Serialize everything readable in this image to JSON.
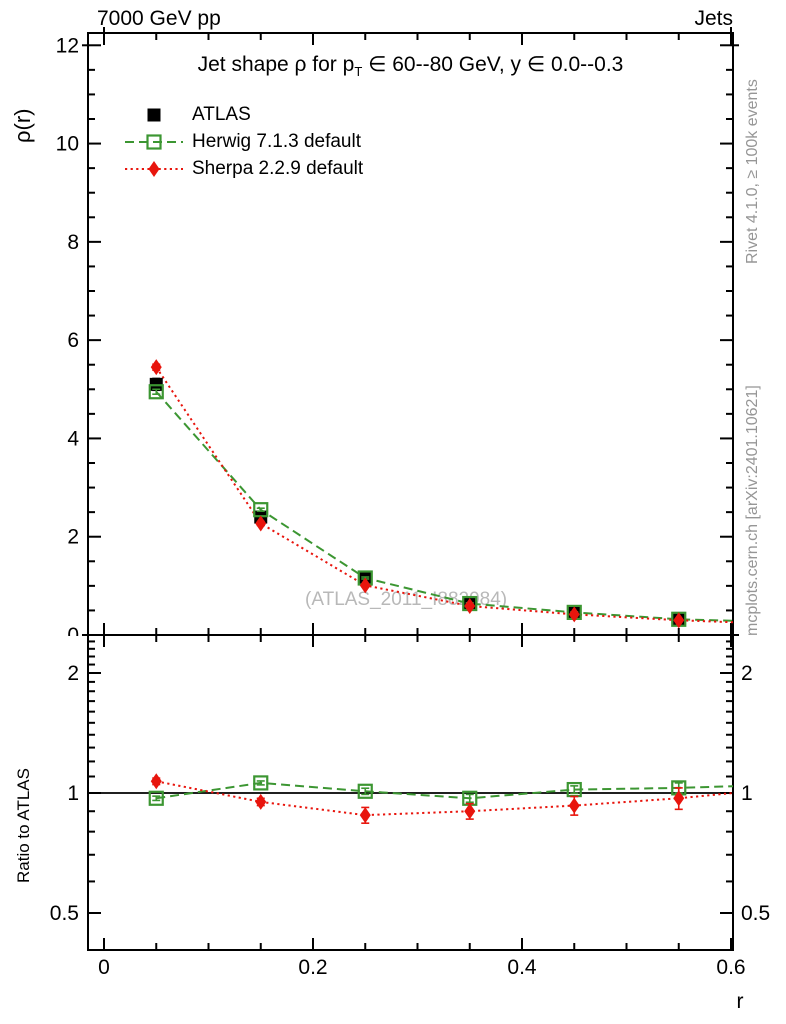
{
  "header": {
    "left": "7000 GeV pp",
    "right": "Jets"
  },
  "main_panel": {
    "ylabel": "ρ(r)",
    "title": {
      "pre": "Jet shape ρ for p",
      "sub": "T",
      "post": " ∈ 60--80 GeV, y ∈ 0.0--0.3"
    },
    "watermark": "(ATLAS_2011_I882984)"
  },
  "ratio_panel": {
    "ylabel": "Ratio to ATLAS",
    "reference_line": 1
  },
  "side_notes": {
    "top": "Rivet 4.1.0, ≥ 100k events",
    "bottom": "mcplots.cern.ch [arXiv:2401.10621]"
  },
  "legend": {
    "items": [
      {
        "label": "ATLAS"
      },
      {
        "label": "Herwig 7.1.3 default"
      },
      {
        "label": "Sherpa 2.2.9 default"
      }
    ]
  },
  "colors": {
    "atlas": "#000000",
    "herwig": "#3c9632",
    "sherpa": "#e8150d",
    "frame": "#000000",
    "gray_text": "#969696",
    "watermark": "#b8b8b8"
  },
  "chart_data": [
    {
      "type": "scatter",
      "panel": "main",
      "title": "Jet shape ρ for pT ∈ 60--80 GeV, y ∈ 0.0--0.3",
      "xlabel": "r",
      "ylabel": "ρ(r)",
      "xlim": [
        -0.015,
        0.602
      ],
      "ylim": [
        0,
        12.25
      ],
      "yscale": "linear",
      "grid": false,
      "xticks": [
        0,
        0.2,
        0.4,
        0.6
      ],
      "xtick_labels": [
        "0",
        "0.2",
        "0.4",
        "0.6"
      ],
      "x_minor_step": 0.05,
      "yticks": [
        0,
        2,
        4,
        6,
        8,
        10,
        12
      ],
      "ytick_labels": [
        "0",
        "2",
        "4",
        "6",
        "8",
        "10",
        "12"
      ],
      "y_minor_step": 0.5,
      "x": [
        0.05,
        0.15,
        0.25,
        0.35,
        0.45,
        0.55
      ],
      "series": [
        {
          "name": "ATLAS",
          "color": "#000000",
          "marker": "filled-square",
          "line": "none",
          "values": [
            5.1,
            2.4,
            1.15,
            0.66,
            0.45,
            0.31
          ],
          "yerr": [
            0.12,
            0.07,
            0.04,
            0.03,
            0.02,
            0.02
          ]
        },
        {
          "name": "Herwig 7.1.3 default",
          "color": "#3c9632",
          "marker": "open-square",
          "line": "dashed",
          "values": [
            4.95,
            2.55,
            1.16,
            0.64,
            0.46,
            0.32
          ],
          "yerr": [
            0.05,
            0.03,
            0.02,
            0.015,
            0.012,
            0.012
          ],
          "line_end_value": 0.29
        },
        {
          "name": "Sherpa 2.2.9 default",
          "color": "#e8150d",
          "marker": "filled-diamond",
          "line": "dotted",
          "values": [
            5.45,
            2.27,
            1.01,
            0.59,
            0.42,
            0.3
          ],
          "yerr": [
            0.06,
            0.04,
            0.025,
            0.02,
            0.02,
            0.02
          ],
          "line_end_value": 0.26
        }
      ]
    },
    {
      "type": "scatter",
      "panel": "ratio",
      "ylabel": "Ratio to ATLAS",
      "yscale": "log",
      "ylim": [
        0.404,
        2.49
      ],
      "grid": false,
      "reference_line": 1,
      "yticks": [
        0.5,
        1,
        2
      ],
      "ytick_labels": [
        "0.5",
        "1",
        "2"
      ],
      "y_minor_ticks": [
        0.6,
        0.7,
        0.8,
        0.9,
        1.1,
        1.2,
        1.3,
        1.4,
        1.5,
        1.6,
        1.7,
        1.8,
        1.9,
        2.1,
        2.2,
        2.3,
        2.4
      ],
      "x": [
        0.05,
        0.15,
        0.25,
        0.35,
        0.45,
        0.55
      ],
      "series": [
        {
          "name": "Herwig 7.1.3 default",
          "color": "#3c9632",
          "marker": "open-square",
          "line": "dashed",
          "values": [
            0.97,
            1.06,
            1.01,
            0.97,
            1.02,
            1.03
          ],
          "yerr": [
            0.012,
            0.012,
            0.018,
            0.022,
            0.022,
            0.03
          ],
          "line_end_value": 1.04
        },
        {
          "name": "Sherpa 2.2.9 default",
          "color": "#e8150d",
          "marker": "filled-diamond",
          "line": "dotted",
          "values": [
            1.07,
            0.95,
            0.88,
            0.9,
            0.93,
            0.97
          ],
          "yerr": [
            0.02,
            0.02,
            0.04,
            0.04,
            0.05,
            0.06
          ],
          "line_end_value": 1.0
        }
      ]
    }
  ]
}
